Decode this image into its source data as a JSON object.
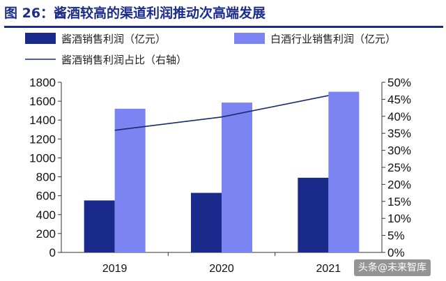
{
  "figure_title": "图 26：酱酒较高的渠道利润推动次高端发展",
  "watermark": "头条@未来智库",
  "colors": {
    "title": "#1b2c8c",
    "bar_primary": "#1a2a8a",
    "bar_secondary": "#7b84f2",
    "line": "#1a2a6c"
  },
  "chart_data": {
    "type": "bar",
    "categories": [
      "2019",
      "2020",
      "2021"
    ],
    "series": [
      {
        "name": "酱酒销售利润（亿元）",
        "kind": "bar",
        "axis": "left",
        "values": [
          550,
          630,
          790
        ]
      },
      {
        "name": "白酒行业销售利润（亿元）",
        "kind": "bar",
        "axis": "left",
        "values": [
          1520,
          1585,
          1700
        ]
      },
      {
        "name": "酱酒销售利润占比（右轴）",
        "kind": "line",
        "axis": "right",
        "values": [
          35.9,
          39.8,
          46.1
        ]
      }
    ],
    "y_left": {
      "range": [
        0,
        1800
      ],
      "ticks": [
        "0",
        "200",
        "400",
        "600",
        "800",
        "1000",
        "1200",
        "1400",
        "1600",
        "1800"
      ]
    },
    "y_right": {
      "range": [
        0,
        50
      ],
      "ticks": [
        "0%",
        "5%",
        "10%",
        "15%",
        "20%",
        "25%",
        "30%",
        "35%",
        "40%",
        "45%",
        "50%"
      ]
    },
    "legend_position": "top",
    "grid": false
  }
}
